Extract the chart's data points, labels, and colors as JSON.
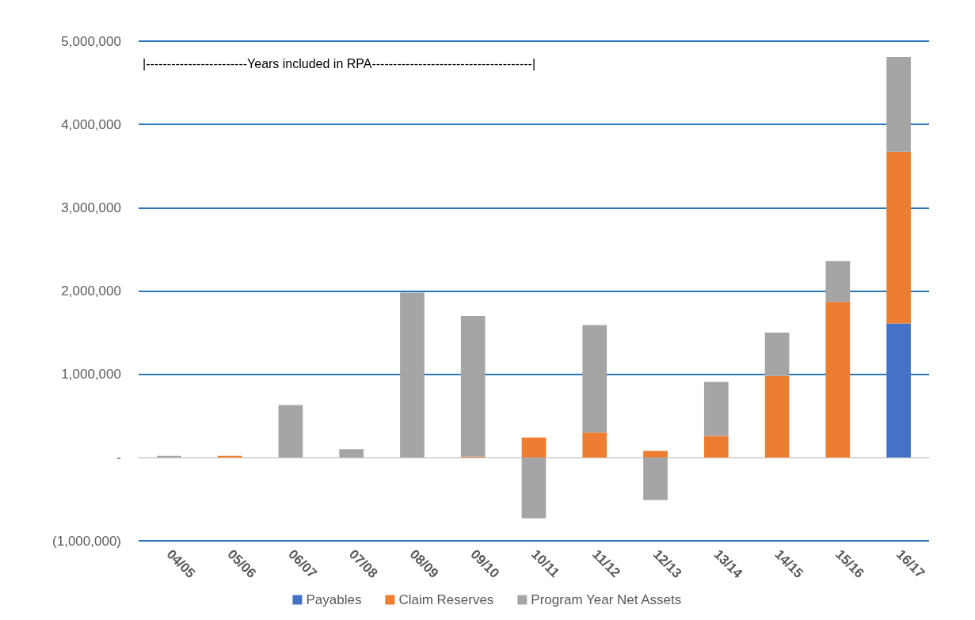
{
  "chart_data": {
    "type": "bar",
    "stacked": true,
    "categories": [
      "04/05",
      "05/06",
      "06/07",
      "07/08",
      "08/09",
      "09/10",
      "10/11",
      "11/12",
      "12/13",
      "13/14",
      "14/15",
      "15/16",
      "16/17"
    ],
    "series": [
      {
        "name": "Payables",
        "color": "#4472c4",
        "values": [
          0,
          0,
          0,
          0,
          0,
          0,
          0,
          0,
          0,
          0,
          0,
          0,
          1610000
        ]
      },
      {
        "name": "Claim Reserves",
        "color": "#ed7d31",
        "values": [
          0,
          20000,
          0,
          0,
          0,
          10000,
          240000,
          300000,
          80000,
          260000,
          980000,
          1870000,
          2060000
        ]
      },
      {
        "name": "Program Year Net Assets",
        "color": "#a5a5a5",
        "values": [
          20000,
          0,
          630000,
          100000,
          1980000,
          1690000,
          -730000,
          1290000,
          -510000,
          650000,
          520000,
          490000,
          1140000
        ]
      }
    ],
    "ylim": [
      -1000000,
      5000000
    ],
    "yticks": [
      {
        "value": -1000000,
        "label": "(1,000,000)"
      },
      {
        "value": 0,
        "label": "-"
      },
      {
        "value": 1000000,
        "label": "1,000,000"
      },
      {
        "value": 2000000,
        "label": "2,000,000"
      },
      {
        "value": 3000000,
        "label": "3,000,000"
      },
      {
        "value": 4000000,
        "label": "4,000,000"
      },
      {
        "value": 5000000,
        "label": "5,000,000"
      }
    ],
    "grid": "y",
    "legend": "bottom",
    "annotations": [
      "|------------------------Years included in RPA--------------------------------------|"
    ]
  }
}
